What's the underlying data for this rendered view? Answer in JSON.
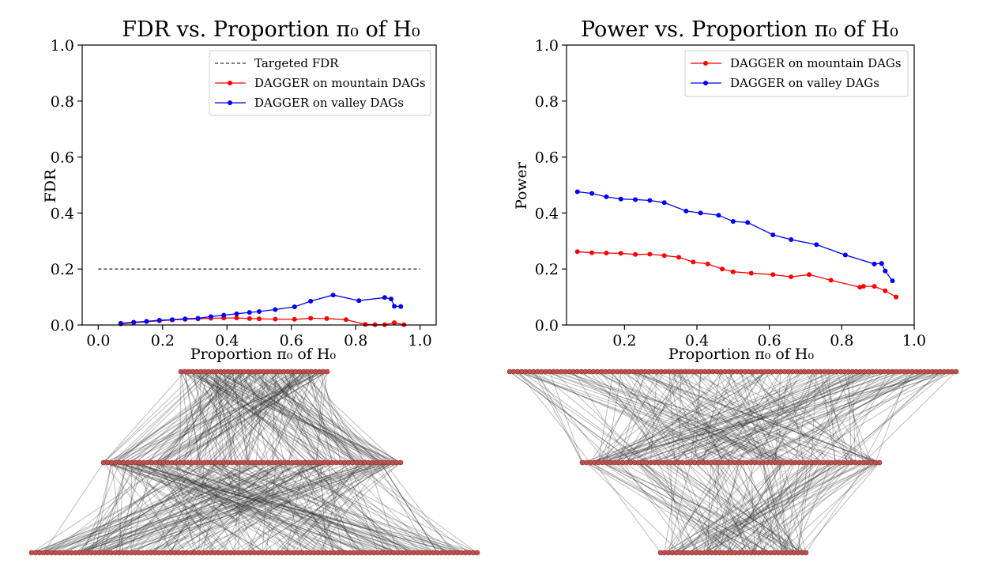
{
  "chart_data": [
    {
      "type": "line",
      "title": "FDR vs. Proportion π₀ of H₀",
      "xlabel": "Proportion π₀ of H₀",
      "ylabel": "FDR",
      "xlim": [
        -0.05,
        1.05
      ],
      "ylim": [
        0,
        1
      ],
      "xticks": [
        "0.0",
        "0.2",
        "0.4",
        "0.6",
        "0.8",
        "1.0"
      ],
      "yticks": [
        "0.0",
        "0.2",
        "0.4",
        "0.6",
        "0.8",
        "1.0"
      ],
      "legend": "top-right",
      "reference_line": {
        "name": "Targeted FDR",
        "y": 0.2,
        "x": [
          0,
          1
        ],
        "style": "dashed",
        "color": "#000000"
      },
      "series": [
        {
          "name": "DAGGER on mountain DAGs",
          "color": "#ff0000",
          "x": [
            0.07,
            0.11,
            0.15,
            0.19,
            0.23,
            0.27,
            0.31,
            0.35,
            0.39,
            0.43,
            0.47,
            0.5,
            0.55,
            0.61,
            0.66,
            0.71,
            0.77,
            0.83,
            0.86,
            0.89,
            0.92,
            0.95
          ],
          "y": [
            0.004,
            0.008,
            0.012,
            0.015,
            0.018,
            0.02,
            0.022,
            0.024,
            0.025,
            0.025,
            0.023,
            0.022,
            0.021,
            0.02,
            0.024,
            0.023,
            0.019,
            0.002,
            0.001,
            0.001,
            0.008,
            0.001
          ]
        },
        {
          "name": "DAGGER on valley DAGs",
          "color": "#0000ff",
          "x": [
            0.07,
            0.11,
            0.15,
            0.19,
            0.23,
            0.27,
            0.31,
            0.35,
            0.39,
            0.43,
            0.47,
            0.5,
            0.55,
            0.61,
            0.66,
            0.73,
            0.81,
            0.89,
            0.91,
            0.92,
            0.94
          ],
          "y": [
            0.006,
            0.01,
            0.013,
            0.017,
            0.019,
            0.022,
            0.024,
            0.03,
            0.035,
            0.04,
            0.045,
            0.048,
            0.055,
            0.065,
            0.085,
            0.107,
            0.087,
            0.098,
            0.093,
            0.067,
            0.066
          ]
        }
      ]
    },
    {
      "type": "line",
      "title": "Power vs. Proportion π₀ of H₀",
      "xlabel": "Proportion π₀ of H₀",
      "ylabel": "Power",
      "xlim": [
        0.04,
        1.0
      ],
      "ylim": [
        0,
        1
      ],
      "xticks": [
        "0.2",
        "0.4",
        "0.6",
        "0.8",
        "1.0"
      ],
      "yticks": [
        "0.0",
        "0.2",
        "0.4",
        "0.6",
        "0.8",
        "1.0"
      ],
      "legend": "top-right",
      "series": [
        {
          "name": "DAGGER on mountain DAGs",
          "color": "#ff0000",
          "x": [
            0.07,
            0.11,
            0.15,
            0.19,
            0.23,
            0.27,
            0.31,
            0.35,
            0.39,
            0.43,
            0.47,
            0.5,
            0.55,
            0.61,
            0.66,
            0.71,
            0.77,
            0.85,
            0.86,
            0.89,
            0.92,
            0.95
          ],
          "y": [
            0.262,
            0.258,
            0.257,
            0.256,
            0.252,
            0.253,
            0.248,
            0.242,
            0.225,
            0.218,
            0.2,
            0.19,
            0.185,
            0.18,
            0.172,
            0.18,
            0.16,
            0.135,
            0.138,
            0.138,
            0.122,
            0.1
          ]
        },
        {
          "name": "DAGGER on valley DAGs",
          "color": "#0000ff",
          "x": [
            0.07,
            0.11,
            0.15,
            0.19,
            0.23,
            0.27,
            0.31,
            0.37,
            0.41,
            0.46,
            0.5,
            0.54,
            0.61,
            0.66,
            0.73,
            0.81,
            0.89,
            0.91,
            0.92,
            0.94
          ],
          "y": [
            0.476,
            0.47,
            0.458,
            0.45,
            0.448,
            0.445,
            0.437,
            0.407,
            0.4,
            0.392,
            0.37,
            0.366,
            0.322,
            0.305,
            0.287,
            0.25,
            0.218,
            0.22,
            0.193,
            0.158
          ]
        }
      ]
    }
  ],
  "dag_illustrations": [
    {
      "name": "mountain DAG",
      "layer_nodes": [
        38,
        75,
        113
      ],
      "node_color": "#c0504d",
      "edge_color": "#333333"
    },
    {
      "name": "valley DAG",
      "layer_nodes": [
        113,
        75,
        38
      ],
      "node_color": "#c0504d",
      "edge_color": "#333333"
    }
  ]
}
